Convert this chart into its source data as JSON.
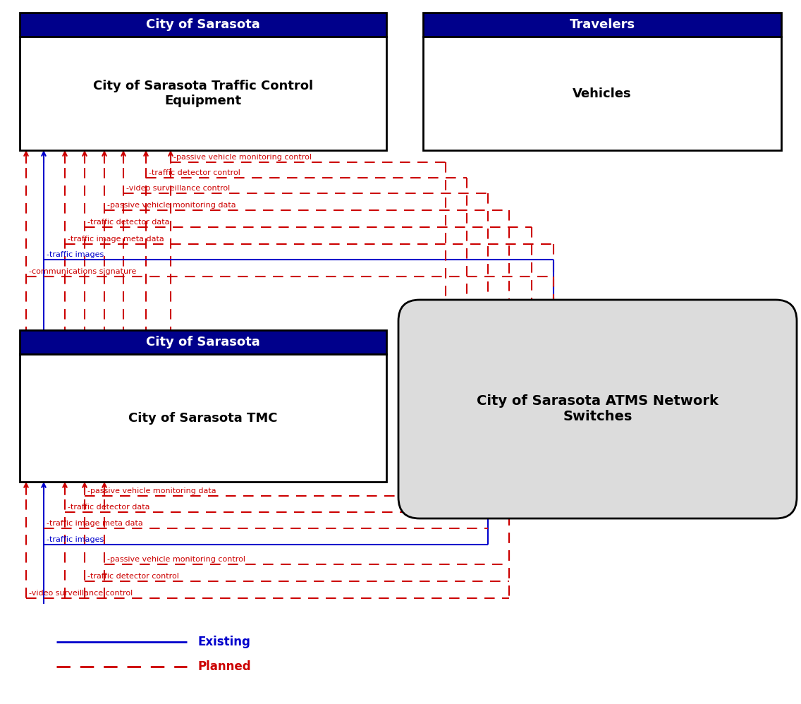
{
  "header_bg": "#00008B",
  "header_fg": "#FFFFFF",
  "red": "#CC0000",
  "blue": "#0000CC",
  "box4_bg": "#DCDCDC",
  "box1_header": "City of Sarasota",
  "box1_body": "City of Sarasota Traffic Control\nEquipment",
  "box2_header": "Travelers",
  "box2_body": "Vehicles",
  "box3_header": "City of Sarasota",
  "box3_body": "City of Sarasota TMC",
  "box4_body": "City of Sarasota ATMS Network\nSwitches",
  "top_flows": [
    {
      "label": "passive vehicle monitoring control",
      "type": "red_dash"
    },
    {
      "label": "traffic detector control",
      "type": "red_dash"
    },
    {
      "label": "video surveillance control",
      "type": "red_dash"
    },
    {
      "label": "passive vehicle monitoring data",
      "type": "red_dash"
    },
    {
      "label": "traffic detector data",
      "type": "red_dash"
    },
    {
      "label": "traffic image meta data",
      "type": "red_dash"
    },
    {
      "label": "traffic images",
      "type": "blue_solid"
    },
    {
      "label": "communications signature",
      "type": "red_dash"
    }
  ],
  "bot_flows": [
    {
      "label": "passive vehicle monitoring data",
      "type": "red_dash"
    },
    {
      "label": "traffic detector data",
      "type": "red_dash"
    },
    {
      "label": "traffic image meta data",
      "type": "red_dash"
    },
    {
      "label": "traffic images",
      "type": "blue_solid"
    },
    {
      "label": "passive vehicle monitoring control",
      "type": "red_dash"
    },
    {
      "label": "traffic detector control",
      "type": "red_dash"
    },
    {
      "label": "video surveillance control",
      "type": "red_dash"
    }
  ],
  "legend_existing": "Existing",
  "legend_planned": "Planned"
}
